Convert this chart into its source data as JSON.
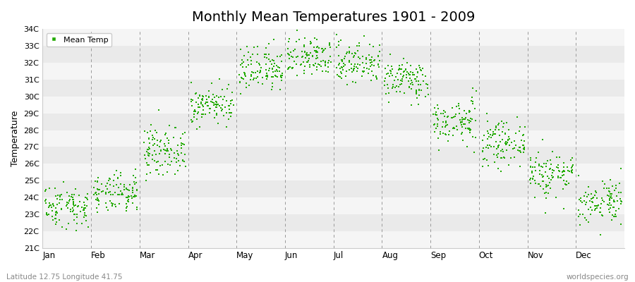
{
  "title": "Monthly Mean Temperatures 1901 - 2009",
  "ylabel": "Temperature",
  "ylim": [
    21,
    34
  ],
  "ytick_labels": [
    "21C",
    "22C",
    "23C",
    "24C",
    "25C",
    "26C",
    "27C",
    "28C",
    "29C",
    "30C",
    "31C",
    "32C",
    "33C",
    "34C"
  ],
  "ytick_values": [
    21,
    22,
    23,
    24,
    25,
    26,
    27,
    28,
    29,
    30,
    31,
    32,
    33,
    34
  ],
  "month_labels": [
    "Jan",
    "Feb",
    "Mar",
    "Apr",
    "May",
    "Jun",
    "Jul",
    "Aug",
    "Sep",
    "Oct",
    "Nov",
    "Dec"
  ],
  "point_color": "#22aa00",
  "background_color": "#ffffff",
  "band_color_odd": "#f5f5f5",
  "band_color_even": "#eaeaea",
  "title_fontsize": 14,
  "legend_label": "Mean Temp",
  "bottom_left_text": "Latitude 12.75 Longitude 41.75",
  "bottom_right_text": "worldspecies.org",
  "month_means": [
    23.5,
    24.2,
    26.8,
    29.5,
    31.5,
    32.3,
    32.0,
    31.0,
    28.5,
    27.2,
    25.4,
    23.8
  ],
  "month_stds": [
    0.6,
    0.55,
    0.7,
    0.55,
    0.65,
    0.55,
    0.6,
    0.55,
    0.6,
    0.6,
    0.7,
    0.65
  ],
  "n_years": 109,
  "random_seed": 42
}
